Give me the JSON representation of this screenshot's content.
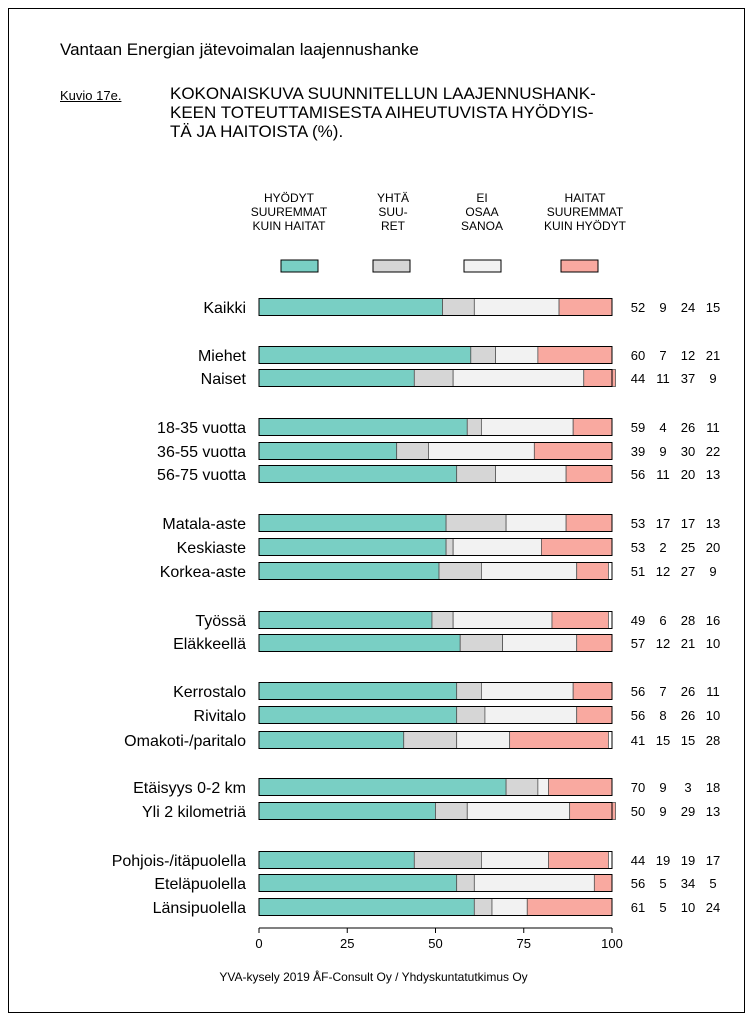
{
  "header": {
    "title": "Vantaan Energian jätevoimalan laajennushanke",
    "figure_label": "Kuvio 17e.",
    "figure_title_lines": [
      "KOKONAISKUVA SUUNNITELLUN LAAJENNUSHANK-",
      "KEEN TOTEUTTAMISESTA AIHEUTUVISTA HYÖDYIS-",
      "TÄ JA HAITOISTA (%)."
    ]
  },
  "colors": {
    "hyodyt": "#79cfc4",
    "yhta": "#d6d6d6",
    "ei_osaa": "#f2f2f2",
    "haitat": "#f9a9a0"
  },
  "chart_data": {
    "type": "bar",
    "stacked": true,
    "orientation": "horizontal",
    "categories": [
      "Kaikki",
      "Miehet",
      "Naiset",
      "18-35 vuotta",
      "36-55 vuotta",
      "56-75 vuotta",
      "Matala-aste",
      "Keskiaste",
      "Korkea-aste",
      "Työssä",
      "Eläkkeellä",
      "Kerrostalo",
      "Rivitalo",
      "Omakoti-/paritalo",
      "Etäisyys 0-2 km",
      "Yli 2 kilometriä",
      "Pohjois-/itäpuolella",
      "Eteläpuolella",
      "Länsipuolella"
    ],
    "groups": [
      1,
      2,
      3,
      3,
      2,
      3,
      2,
      3
    ],
    "series": [
      {
        "name": "HYÖDYT\nSUUREMMAT\nKUIN HAITAT",
        "key": "hyodyt",
        "values": [
          52,
          60,
          44,
          59,
          39,
          56,
          53,
          53,
          51,
          49,
          57,
          56,
          56,
          41,
          70,
          50,
          44,
          56,
          61
        ]
      },
      {
        "name": "YHTÄ\nSUU-\nRET",
        "key": "yhta",
        "values": [
          9,
          7,
          11,
          4,
          9,
          11,
          17,
          2,
          12,
          6,
          12,
          7,
          8,
          15,
          9,
          9,
          19,
          5,
          5
        ]
      },
      {
        "name": "EI\nOSAA\nSANOA",
        "key": "ei_osaa",
        "values": [
          24,
          12,
          37,
          26,
          30,
          20,
          17,
          25,
          27,
          28,
          21,
          26,
          26,
          15,
          3,
          29,
          19,
          34,
          10
        ]
      },
      {
        "name": "HAITAT\nSUUREMMAT\nKUIN HYÖDYT",
        "key": "haitat",
        "values": [
          15,
          21,
          9,
          11,
          22,
          13,
          13,
          20,
          9,
          16,
          10,
          11,
          10,
          28,
          18,
          13,
          17,
          5,
          24
        ]
      }
    ],
    "xlim": [
      0,
      100
    ],
    "xticks": [
      0,
      25,
      50,
      75,
      100
    ],
    "xlabel": "",
    "ylabel": ""
  },
  "footer": {
    "source": "YVA-kysely 2019 ÅF-Consult Oy / Yhdyskuntatutkimus Oy"
  }
}
